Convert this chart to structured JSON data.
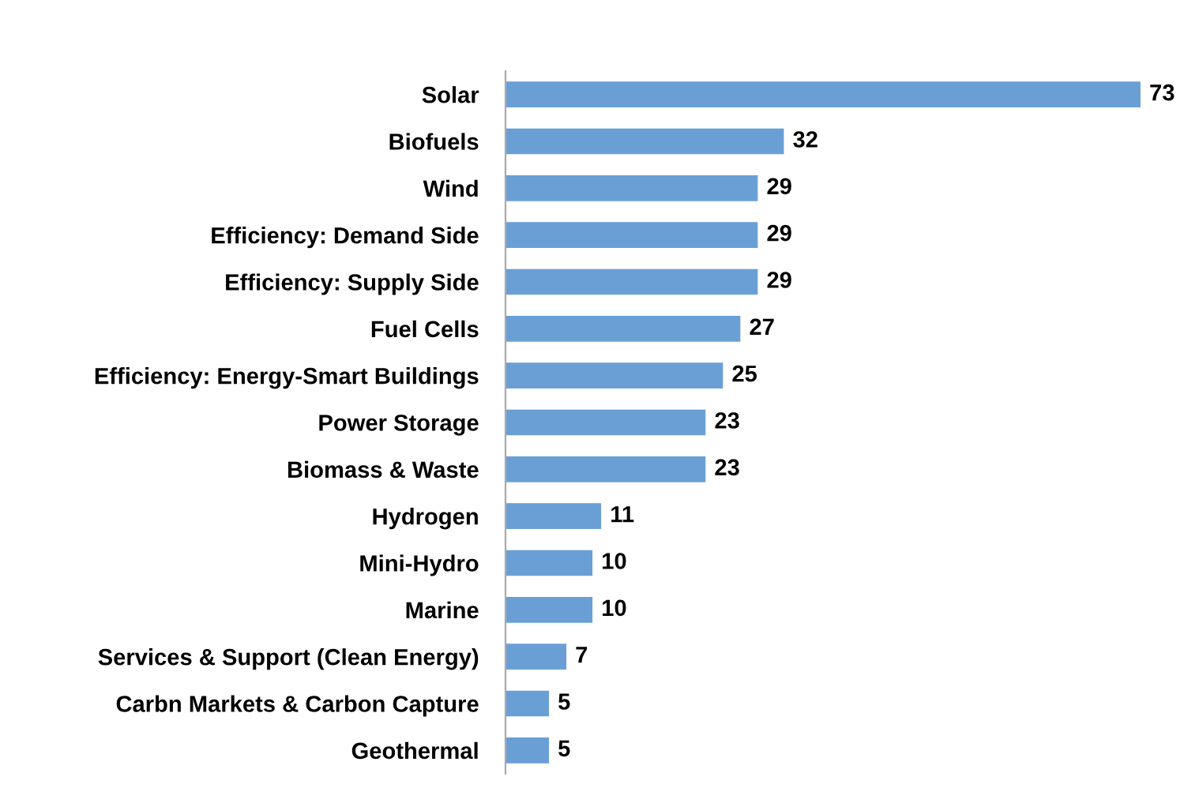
{
  "chart_data": {
    "type": "bar",
    "orientation": "horizontal",
    "data_labels": true,
    "grid": false,
    "legend": false,
    "categories": [
      "Solar",
      "Biofuels",
      "Wind",
      "Efficiency: Demand Side",
      "Efficiency: Supply Side",
      "Fuel Cells",
      "Efficiency: Energy-Smart Buildings",
      "Power Storage",
      "Biomass & Waste",
      "Hydrogen",
      "Mini-Hydro",
      "Marine",
      "Services & Support (Clean Energy)",
      "Carbn Markets & Carbon Capture",
      "Geothermal"
    ],
    "values": [
      73,
      32,
      29,
      29,
      29,
      27,
      25,
      23,
      23,
      11,
      10,
      10,
      7,
      5,
      5
    ],
    "color": "#6a9fd6"
  }
}
